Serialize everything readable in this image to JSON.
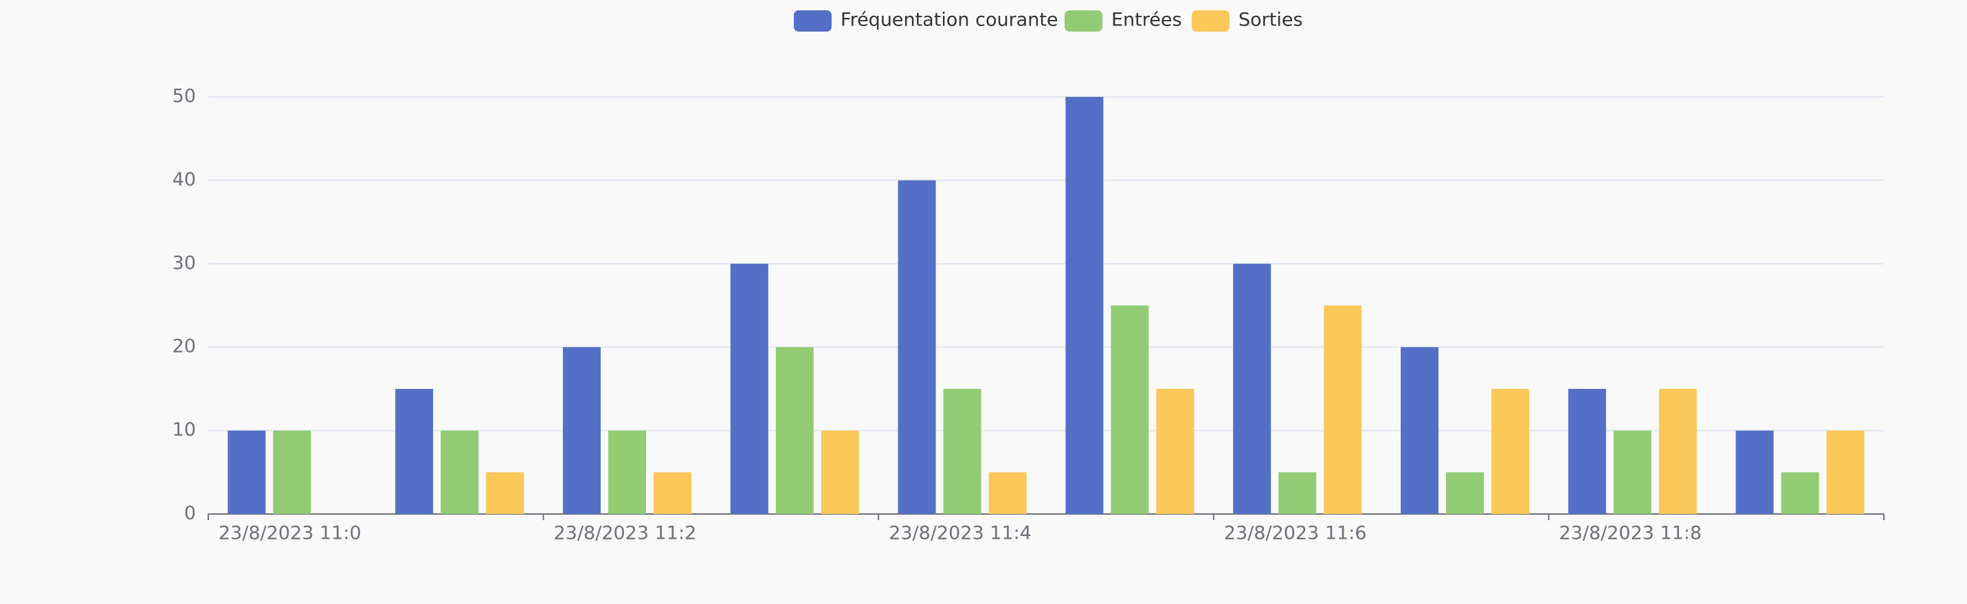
{
  "chart_data": {
    "type": "bar",
    "categories": [
      "23/8/2023 11:0",
      null,
      "23/8/2023 11:2",
      null,
      "23/8/2023 11:4",
      null,
      "23/8/2023 11:6",
      null,
      "23/8/2023 11:8",
      null
    ],
    "series": [
      {
        "name": "Fréquentation courante",
        "color": "#5470c6",
        "values": [
          10,
          15,
          20,
          30,
          40,
          50,
          30,
          20,
          15,
          10
        ]
      },
      {
        "name": "Entrées",
        "color": "#91cc75",
        "values": [
          10,
          10,
          10,
          20,
          15,
          25,
          5,
          5,
          10,
          5
        ]
      },
      {
        "name": "Sorties",
        "color": "#fac858",
        "values": [
          0,
          5,
          5,
          10,
          5,
          15,
          25,
          15,
          15,
          10
        ]
      }
    ],
    "ylim": [
      0,
      50
    ],
    "yticks": [
      0,
      10,
      20,
      30,
      40,
      50
    ],
    "grid": true,
    "legend": "top"
  }
}
